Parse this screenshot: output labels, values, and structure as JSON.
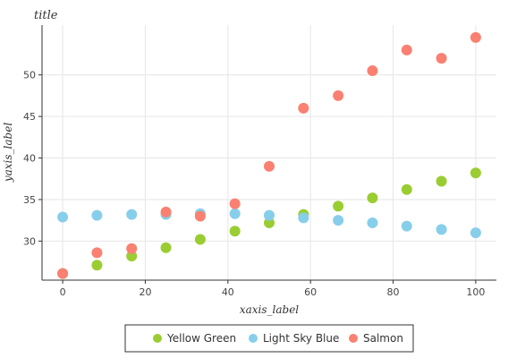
{
  "chart_data": {
    "type": "scatter",
    "title": "title",
    "xlabel": "xaxis_label",
    "ylabel": "yaxis_label",
    "xlim": [
      -5,
      105
    ],
    "ylim": [
      25.3,
      56
    ],
    "x_ticks": [
      0,
      20,
      40,
      60,
      80,
      100
    ],
    "y_ticks": [
      30,
      35,
      40,
      45,
      50
    ],
    "grid": true,
    "legend_position": "bottom",
    "series": [
      {
        "name": "Yellow Green",
        "color": "#9acd32",
        "x": [
          0,
          8.3,
          16.7,
          25,
          33.3,
          41.7,
          50,
          58.3,
          66.7,
          75,
          83.3,
          91.7,
          100
        ],
        "y": [
          26.1,
          27.1,
          28.2,
          29.2,
          30.2,
          31.2,
          32.2,
          33.2,
          34.2,
          35.2,
          36.2,
          37.2,
          38.2
        ]
      },
      {
        "name": "Light Sky Blue",
        "color": "#87ceeb",
        "x": [
          0,
          8.3,
          16.7,
          25,
          33.3,
          41.7,
          50,
          58.3,
          66.7,
          75,
          83.3,
          91.7,
          100
        ],
        "y": [
          32.9,
          33.1,
          33.2,
          33.2,
          33.3,
          33.3,
          33.1,
          32.8,
          32.5,
          32.2,
          31.8,
          31.4,
          31.0
        ]
      },
      {
        "name": "Salmon",
        "color": "#fa8072",
        "x": [
          0,
          8.3,
          16.7,
          25,
          33.3,
          41.7,
          50,
          58.3,
          66.7,
          75,
          83.3,
          91.7,
          100
        ],
        "y": [
          26.1,
          28.6,
          29.1,
          33.5,
          33.0,
          34.5,
          39.0,
          46.0,
          47.5,
          50.5,
          53.0,
          52.0,
          54.5
        ]
      }
    ]
  }
}
